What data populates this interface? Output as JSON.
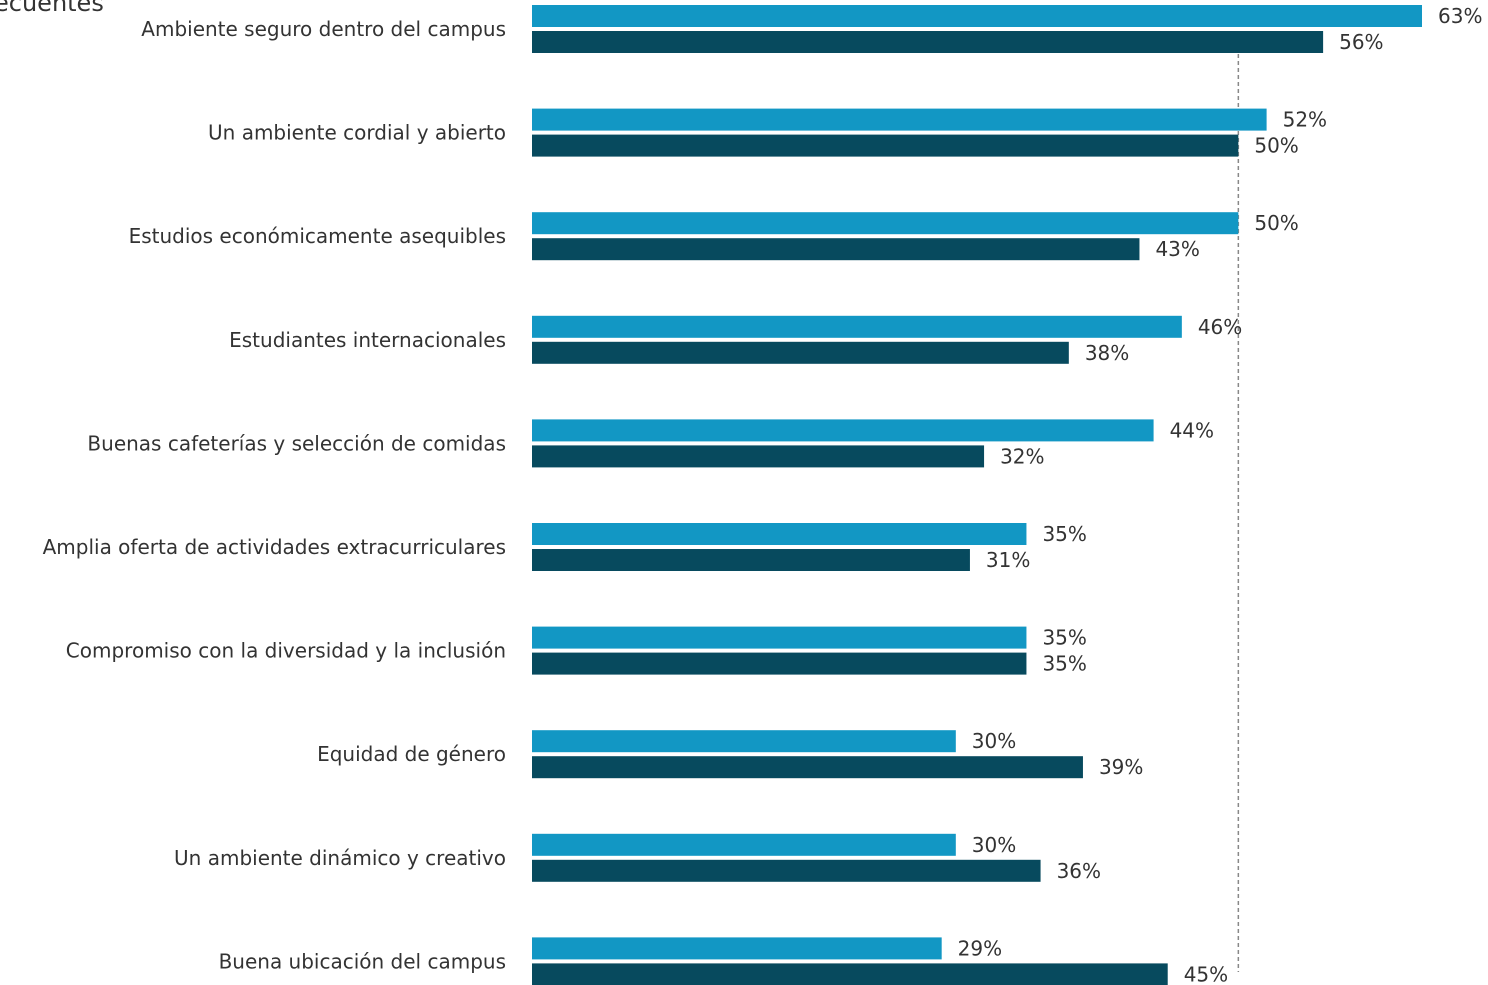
{
  "title_fragment": "ecuentes",
  "chart_data": {
    "type": "bar",
    "orientation": "horizontal",
    "categories": [
      "Ambiente seguro dentro del campus",
      "Un ambiente cordial y abierto",
      "Estudios económicamente asequibles",
      "Estudiantes internacionales",
      "Buenas cafeterías y selección de comidas",
      "Amplia oferta de actividades extracurriculares",
      "Compromiso con la diversidad y la inclusión",
      "Equidad de género",
      "Un ambiente dinámico y creativo",
      "Buena ubicación del campus"
    ],
    "series": [
      {
        "color": "#1297c4",
        "values": [
          63,
          52,
          50,
          46,
          44,
          35,
          35,
          30,
          30,
          29
        ],
        "labels": [
          "63%",
          "52%",
          "50%",
          "46%",
          "44%",
          "35%",
          "35%",
          "30%",
          "30%",
          "29%"
        ]
      },
      {
        "color": "#074a5e",
        "values": [
          56,
          50,
          43,
          38,
          32,
          31,
          35,
          39,
          36,
          45
        ],
        "labels": [
          "56%",
          "50%",
          "43%",
          "38%",
          "32%",
          "31%",
          "35%",
          "39%",
          "36%",
          "45%"
        ]
      }
    ],
    "reference_line": {
      "value": 50,
      "style": "dashed",
      "color": "#888888"
    },
    "xlim": [
      0,
      63
    ],
    "grid": false,
    "legend": "none"
  }
}
